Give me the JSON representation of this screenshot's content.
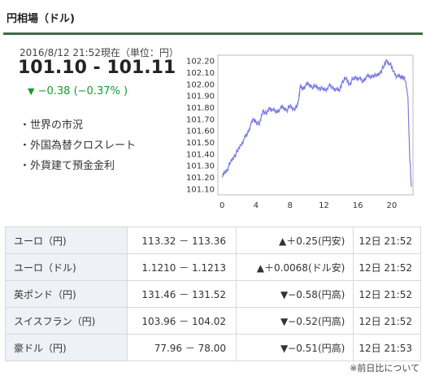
{
  "header": {
    "title": "円相場（ドル)"
  },
  "quote": {
    "timestamp": "2016/8/12 21:52現在（単位：円）",
    "price": "101.10 - 101.11",
    "change_arrow": "▼",
    "change": "−0.38 (−0.37% )"
  },
  "links": [
    {
      "label": "・世界の市況"
    },
    {
      "label": "・外国為替クロスレート"
    },
    {
      "label": "・外貨建て預金金利"
    }
  ],
  "chart_data": {
    "type": "line",
    "y_ticks": [
      "102.20",
      "102.10",
      "102.00",
      "101.90",
      "101.80",
      "101.70",
      "101.60",
      "101.50",
      "101.40",
      "101.30",
      "101.20",
      "101.10"
    ],
    "x_ticks": [
      "0",
      "4",
      "8",
      "12",
      "16",
      "20"
    ],
    "ylim": [
      101.05,
      102.25
    ],
    "xlim": [
      -0.5,
      22.5
    ],
    "color": "#7b7be0",
    "series": [
      {
        "x": [
          0,
          0.3,
          0.6,
          1,
          1.4,
          1.8,
          2.2,
          2.6,
          3,
          3.3,
          3.7,
          4,
          4.4,
          4.8,
          5.2,
          5.6,
          6,
          6.4,
          6.8,
          7.2,
          7.6,
          8,
          8.4,
          8.8,
          9,
          9.2,
          9.5,
          9.8,
          10.2,
          10.6,
          11,
          11.4,
          11.8,
          12.2,
          12.6,
          13,
          13.4,
          13.8,
          14.2,
          14.6,
          15,
          15.4,
          15.8,
          16.2,
          16.6,
          17,
          17.4,
          17.8,
          18.2,
          18.6,
          19,
          19.4,
          19.8,
          20.2,
          20.6,
          21,
          21.3,
          21.6,
          21.9,
          22.1,
          22.3
        ],
        "y": [
          101.2,
          101.24,
          101.27,
          101.33,
          101.38,
          101.42,
          101.48,
          101.53,
          101.58,
          101.64,
          101.7,
          101.68,
          101.65,
          101.78,
          101.74,
          101.8,
          101.78,
          101.76,
          101.79,
          101.8,
          101.78,
          101.81,
          101.79,
          101.8,
          101.86,
          101.98,
          101.96,
          101.99,
          102.0,
          101.98,
          101.98,
          101.97,
          101.96,
          101.95,
          101.99,
          101.97,
          101.96,
          101.94,
          102.03,
          102.05,
          102.0,
          102.04,
          102.06,
          102.05,
          102.02,
          102.07,
          102.06,
          102.08,
          102.07,
          102.1,
          102.14,
          102.21,
          102.17,
          102.11,
          102.07,
          102.06,
          102.07,
          102.03,
          101.9,
          101.4,
          101.12
        ]
      }
    ]
  },
  "table": {
    "rows": [
      {
        "name": "ユーロ（円)",
        "bidask": "113.32 － 113.36",
        "arrow": "▲",
        "diff": "＋0.25(円安)",
        "dir": "up",
        "time": "12日 21:52"
      },
      {
        "name": "ユーロ（ドル)",
        "bidask": "1.1210 － 1.1213",
        "arrow": "▲",
        "diff": "＋0.0068(ドル安)",
        "dir": "up",
        "time": "12日 21:52"
      },
      {
        "name": "英ポンド（円)",
        "bidask": "131.46 － 131.52",
        "arrow": "▼",
        "diff": "−0.58(円高)",
        "dir": "down",
        "time": "12日 21:52"
      },
      {
        "name": "スイスフラン（円)",
        "bidask": "103.96 － 104.02",
        "arrow": "▼",
        "diff": "−0.52(円高)",
        "dir": "down",
        "time": "12日 21:52"
      },
      {
        "name": "豪ドル（円)",
        "bidask": "77.96 － 78.00",
        "arrow": "▼",
        "diff": "−0.51(円高)",
        "dir": "down",
        "time": "12日 21:53"
      }
    ]
  },
  "footer": {
    "note": "※前日比について"
  }
}
